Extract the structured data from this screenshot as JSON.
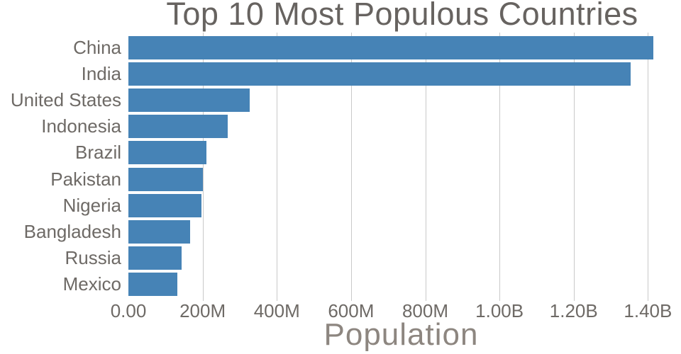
{
  "chart_data": {
    "type": "bar",
    "orientation": "horizontal",
    "title": "Top 10 Most Populous Countries",
    "xlabel": "Population",
    "ylabel": "",
    "categories": [
      "China",
      "India",
      "United States",
      "Indonesia",
      "Brazil",
      "Pakistan",
      "Nigeria",
      "Bangladesh",
      "Russia",
      "Mexico"
    ],
    "values_millions": [
      1415,
      1354,
      327,
      267,
      211,
      201,
      196,
      166,
      144,
      131
    ],
    "xlim_millions": [
      0,
      1470
    ],
    "xticks": [
      {
        "label": "0.00",
        "value_millions": 0
      },
      {
        "label": "200M",
        "value_millions": 200
      },
      {
        "label": "400M",
        "value_millions": 400
      },
      {
        "label": "600M",
        "value_millions": 600
      },
      {
        "label": "800M",
        "value_millions": 800
      },
      {
        "label": "1.00B",
        "value_millions": 1000
      },
      {
        "label": "1.20B",
        "value_millions": 1200
      },
      {
        "label": "1.40B",
        "value_millions": 1400
      }
    ],
    "grid": true,
    "legend": false,
    "colors": {
      "bar": "#4683b6",
      "gridline": "#c9c9c9",
      "title_text": "#676360",
      "tick_text": "#6e6a66",
      "axis_title_text": "#8d8680"
    }
  }
}
